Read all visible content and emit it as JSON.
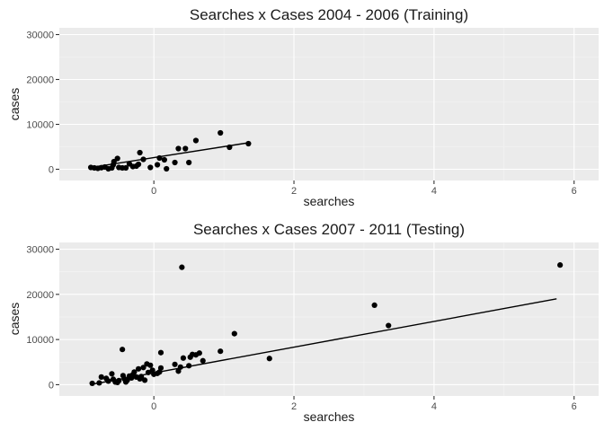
{
  "chart_data": [
    {
      "type": "scatter",
      "title": "Searches x Cases 2004 - 2006 (Training)",
      "xlabel": "searches",
      "ylabel": "cases",
      "xlim": [
        -1.35,
        6.35
      ],
      "ylim": [
        -2500,
        31500
      ],
      "xticks": [
        0,
        2,
        4,
        6
      ],
      "yticks": [
        0,
        10000,
        20000,
        30000
      ],
      "ytick_labels": [
        "0",
        "10000",
        "20000",
        "30000"
      ],
      "grid": true,
      "points": [
        {
          "x": -0.9,
          "y": 400
        },
        {
          "x": -0.85,
          "y": 300
        },
        {
          "x": -0.8,
          "y": 200
        },
        {
          "x": -0.75,
          "y": 350
        },
        {
          "x": -0.7,
          "y": 500
        },
        {
          "x": -0.65,
          "y": 100
        },
        {
          "x": -0.6,
          "y": 300
        },
        {
          "x": -0.58,
          "y": 1000
        },
        {
          "x": -0.57,
          "y": 1700
        },
        {
          "x": -0.52,
          "y": 2400
        },
        {
          "x": -0.5,
          "y": 400
        },
        {
          "x": -0.45,
          "y": 300
        },
        {
          "x": -0.4,
          "y": 300
        },
        {
          "x": -0.35,
          "y": 1200
        },
        {
          "x": -0.3,
          "y": 600
        },
        {
          "x": -0.25,
          "y": 700
        },
        {
          "x": -0.22,
          "y": 1100
        },
        {
          "x": -0.2,
          "y": 3700
        },
        {
          "x": -0.15,
          "y": 2200
        },
        {
          "x": -0.05,
          "y": 400
        },
        {
          "x": 0.05,
          "y": 1000
        },
        {
          "x": 0.08,
          "y": 2500
        },
        {
          "x": 0.15,
          "y": 2100
        },
        {
          "x": 0.18,
          "y": 100
        },
        {
          "x": 0.3,
          "y": 1500
        },
        {
          "x": 0.35,
          "y": 4600
        },
        {
          "x": 0.45,
          "y": 4600
        },
        {
          "x": 0.5,
          "y": 1500
        },
        {
          "x": 0.6,
          "y": 6400
        },
        {
          "x": 0.95,
          "y": 8100
        },
        {
          "x": 1.08,
          "y": 4900
        },
        {
          "x": 1.35,
          "y": 5700
        }
      ],
      "fit_line": {
        "x": [
          -0.9,
          1.35
        ],
        "y": [
          400,
          5900
        ]
      }
    },
    {
      "type": "scatter",
      "title": "Searches x Cases 2007 - 2011 (Testing)",
      "xlabel": "searches",
      "ylabel": "cases",
      "xlim": [
        -1.35,
        6.35
      ],
      "ylim": [
        -2500,
        31500
      ],
      "xticks": [
        0,
        2,
        4,
        6
      ],
      "yticks": [
        0,
        10000,
        20000,
        30000
      ],
      "ytick_labels": [
        "0",
        "10000",
        "20000",
        "30000"
      ],
      "grid": true,
      "points": [
        {
          "x": -0.88,
          "y": 300
        },
        {
          "x": -0.78,
          "y": 400
        },
        {
          "x": -0.75,
          "y": 1700
        },
        {
          "x": -0.68,
          "y": 1400
        },
        {
          "x": -0.65,
          "y": 800
        },
        {
          "x": -0.6,
          "y": 2400
        },
        {
          "x": -0.58,
          "y": 1200
        },
        {
          "x": -0.55,
          "y": 600
        },
        {
          "x": -0.52,
          "y": 500
        },
        {
          "x": -0.5,
          "y": 900
        },
        {
          "x": -0.45,
          "y": 7800
        },
        {
          "x": -0.44,
          "y": 2000
        },
        {
          "x": -0.42,
          "y": 1300
        },
        {
          "x": -0.4,
          "y": 600
        },
        {
          "x": -0.38,
          "y": 1000
        },
        {
          "x": -0.35,
          "y": 1900
        },
        {
          "x": -0.32,
          "y": 1500
        },
        {
          "x": -0.3,
          "y": 2200
        },
        {
          "x": -0.28,
          "y": 2800
        },
        {
          "x": -0.25,
          "y": 1700
        },
        {
          "x": -0.22,
          "y": 3500
        },
        {
          "x": -0.2,
          "y": 1300
        },
        {
          "x": -0.18,
          "y": 1800
        },
        {
          "x": -0.15,
          "y": 3800
        },
        {
          "x": -0.13,
          "y": 1000
        },
        {
          "x": -0.1,
          "y": 4600
        },
        {
          "x": -0.08,
          "y": 2700
        },
        {
          "x": -0.05,
          "y": 4300
        },
        {
          "x": -0.02,
          "y": 3200
        },
        {
          "x": 0.0,
          "y": 2300
        },
        {
          "x": 0.05,
          "y": 2500
        },
        {
          "x": 0.08,
          "y": 2800
        },
        {
          "x": 0.1,
          "y": 3700
        },
        {
          "x": 0.1,
          "y": 7100
        },
        {
          "x": 0.3,
          "y": 4500
        },
        {
          "x": 0.35,
          "y": 3000
        },
        {
          "x": 0.38,
          "y": 3900
        },
        {
          "x": 0.42,
          "y": 5900
        },
        {
          "x": 0.4,
          "y": 26000
        },
        {
          "x": 0.5,
          "y": 4200
        },
        {
          "x": 0.52,
          "y": 6100
        },
        {
          "x": 0.55,
          "y": 6700
        },
        {
          "x": 0.6,
          "y": 6600
        },
        {
          "x": 0.65,
          "y": 7000
        },
        {
          "x": 0.7,
          "y": 5300
        },
        {
          "x": 0.95,
          "y": 7400
        },
        {
          "x": 1.15,
          "y": 11300
        },
        {
          "x": 1.65,
          "y": 5800
        },
        {
          "x": 3.15,
          "y": 17600
        },
        {
          "x": 3.35,
          "y": 13100
        },
        {
          "x": 5.8,
          "y": 26500
        }
      ],
      "fit_line": {
        "x": [
          -0.88,
          5.75
        ],
        "y": [
          100,
          19000
        ]
      }
    }
  ]
}
